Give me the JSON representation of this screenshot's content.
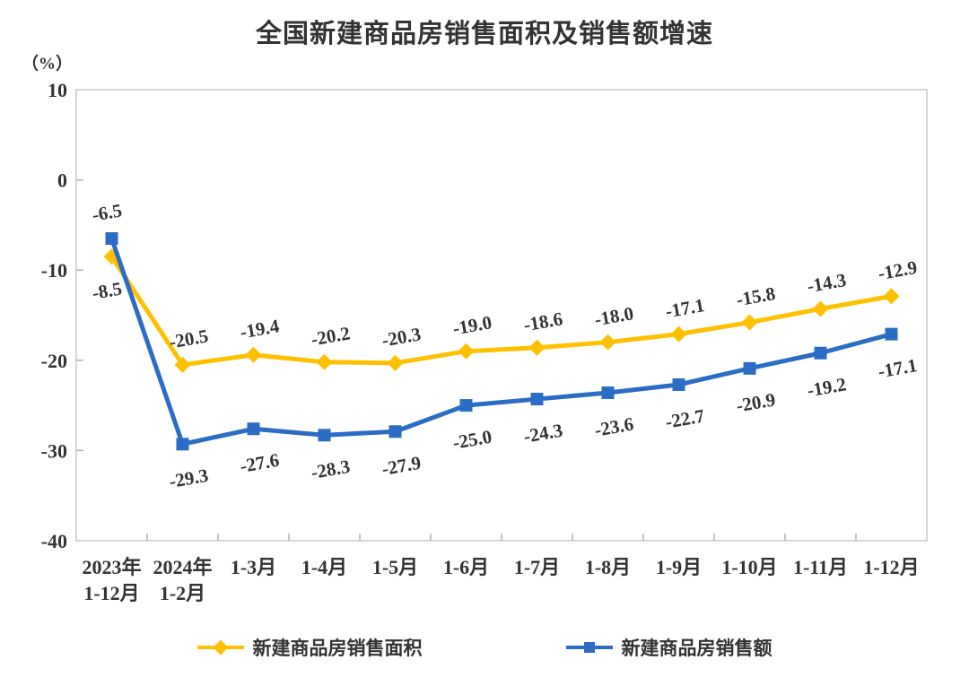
{
  "chart_data": {
    "type": "line",
    "title": "全国新建商品房销售面积及销售额增速",
    "unit_label": "（%）",
    "categories": [
      [
        "2023年",
        "1-12月"
      ],
      [
        "2024年",
        "1-2月"
      ],
      [
        "1-3月"
      ],
      [
        "1-4月"
      ],
      [
        "1-5月"
      ],
      [
        "1-6月"
      ],
      [
        "1-7月"
      ],
      [
        "1-8月"
      ],
      [
        "1-9月"
      ],
      [
        "1-10月"
      ],
      [
        "1-11月"
      ],
      [
        "1-12月"
      ]
    ],
    "y_ticks": [
      10,
      0,
      -10,
      -20,
      -30,
      -40
    ],
    "ylim": [
      -40,
      10
    ],
    "grid": false,
    "legend_position": "bottom",
    "axis_text_color": "#333333",
    "plot_border_color": "#c9c9c9",
    "tick_mark_color": "#b3b3b3",
    "series": [
      {
        "name": "新建商品房销售面积",
        "marker": "diamond",
        "color": "#FFC000",
        "label_side": "above",
        "first_label_side": "below",
        "values": [
          -8.5,
          -20.5,
          -19.4,
          -20.2,
          -20.3,
          -19.0,
          -18.6,
          -18.0,
          -17.1,
          -15.8,
          -14.3,
          -12.9
        ]
      },
      {
        "name": "新建商品房销售额",
        "marker": "square",
        "color": "#2B6CC4",
        "label_side": "below",
        "first_label_side": "above",
        "values": [
          -6.5,
          -29.3,
          -27.6,
          -28.3,
          -27.9,
          -25.0,
          -24.3,
          -23.6,
          -22.7,
          -20.9,
          -19.2,
          -17.1
        ]
      }
    ]
  }
}
